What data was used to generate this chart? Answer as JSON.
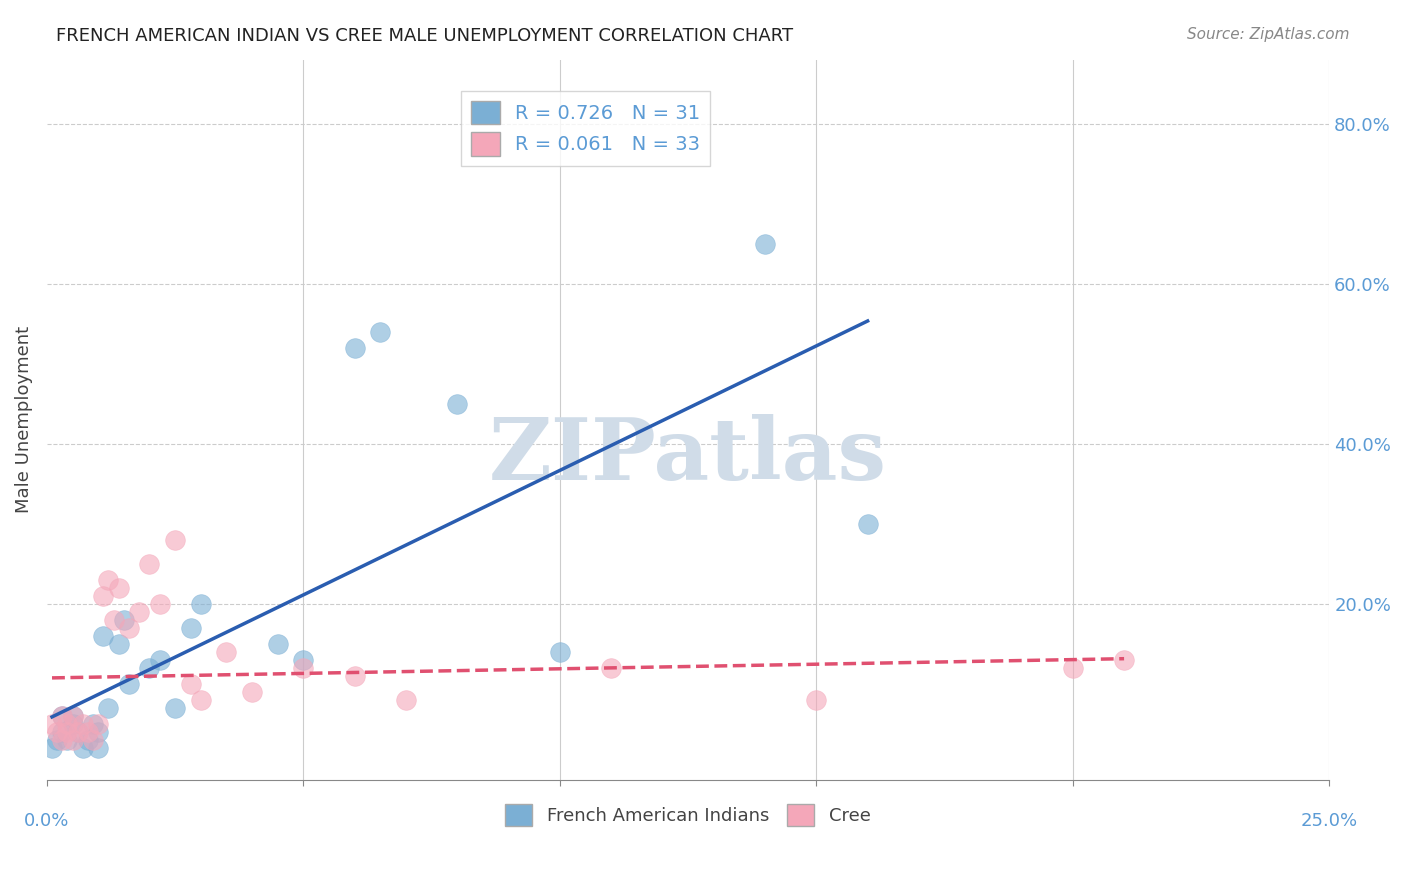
{
  "title": "FRENCH AMERICAN INDIAN VS CREE MALE UNEMPLOYMENT CORRELATION CHART",
  "source": "Source: ZipAtlas.com",
  "ylabel": "Male Unemployment",
  "ylabel_right_ticks": [
    "80.0%",
    "60.0%",
    "40.0%",
    "20.0%"
  ],
  "ylabel_right_vals": [
    0.8,
    0.6,
    0.4,
    0.2
  ],
  "xlim": [
    0.0,
    0.25
  ],
  "ylim": [
    -0.02,
    0.88
  ],
  "blue_color": "#7BAFD4",
  "pink_color": "#F4A7B9",
  "trendline_blue": "#2A5DB0",
  "trendline_pink": "#E05070",
  "background_color": "#FFFFFF",
  "grid_color": "#CCCCCC",
  "watermark": "ZIPatlas",
  "watermark_color": "#D0DCE8",
  "fai_x": [
    0.001,
    0.002,
    0.003,
    0.003,
    0.004,
    0.005,
    0.005,
    0.006,
    0.007,
    0.008,
    0.009,
    0.01,
    0.01,
    0.011,
    0.012,
    0.014,
    0.015,
    0.016,
    0.02,
    0.022,
    0.025,
    0.028,
    0.03,
    0.045,
    0.05,
    0.06,
    0.065,
    0.08,
    0.1,
    0.14,
    0.16
  ],
  "fai_y": [
    0.02,
    0.03,
    0.04,
    0.06,
    0.03,
    0.05,
    0.06,
    0.04,
    0.02,
    0.03,
    0.05,
    0.02,
    0.04,
    0.16,
    0.07,
    0.15,
    0.18,
    0.1,
    0.12,
    0.13,
    0.07,
    0.17,
    0.2,
    0.15,
    0.13,
    0.52,
    0.54,
    0.45,
    0.14,
    0.65,
    0.3
  ],
  "cree_x": [
    0.001,
    0.002,
    0.003,
    0.003,
    0.004,
    0.004,
    0.005,
    0.005,
    0.006,
    0.007,
    0.008,
    0.009,
    0.01,
    0.011,
    0.012,
    0.013,
    0.014,
    0.016,
    0.018,
    0.02,
    0.022,
    0.025,
    0.028,
    0.03,
    0.035,
    0.04,
    0.05,
    0.06,
    0.07,
    0.11,
    0.15,
    0.2,
    0.21
  ],
  "cree_y": [
    0.05,
    0.04,
    0.03,
    0.06,
    0.05,
    0.04,
    0.03,
    0.06,
    0.04,
    0.05,
    0.04,
    0.03,
    0.05,
    0.21,
    0.23,
    0.18,
    0.22,
    0.17,
    0.19,
    0.25,
    0.2,
    0.28,
    0.1,
    0.08,
    0.14,
    0.09,
    0.12,
    0.11,
    0.08,
    0.12,
    0.08,
    0.12,
    0.13
  ]
}
